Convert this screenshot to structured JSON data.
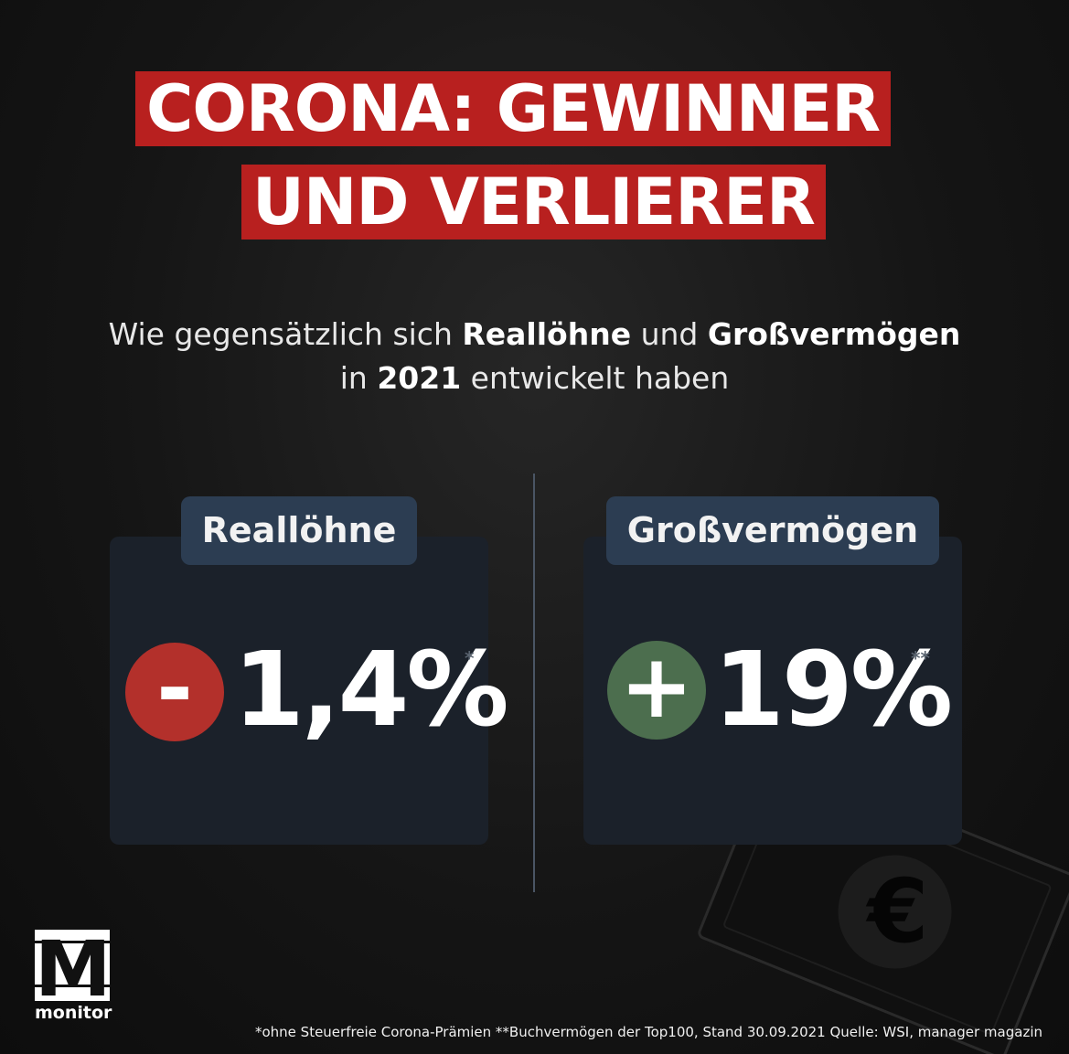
{
  "title": {
    "line1": "CORONA: GEWINNER",
    "line2": "UND VERLIERER"
  },
  "subtitle": {
    "line1_a": "Wie gegensätzlich sich ",
    "line1_b": "Reallöhne",
    "line1_c": " und ",
    "line1_d": "Großvermögen",
    "line2_a": "in ",
    "line2_b": "2021",
    "line2_c": " entwickelt haben"
  },
  "left": {
    "label": "Reallöhne",
    "sign": "-",
    "value": "1,4%",
    "footnote_mark": "*"
  },
  "right": {
    "label": "Großvermögen",
    "sign": "+",
    "value": "19%",
    "footnote_mark": "**"
  },
  "footer": {
    "note": "*ohne Steuerfreie Corona-Prämien **Buchvermögen der Top100, Stand 30.09.2021 Quelle: WSI, manager magazin"
  },
  "logo": {
    "mark": "M",
    "text": "monitor"
  },
  "decor": {
    "bill_icon": "banknote-icon",
    "euro_symbol": "€"
  },
  "colors": {
    "title_band": "#b8201f",
    "minus_circle": "#b3302b",
    "plus_circle": "#4c6e4e",
    "label_pill": "#2c3d52",
    "panel": "#1b212a"
  }
}
